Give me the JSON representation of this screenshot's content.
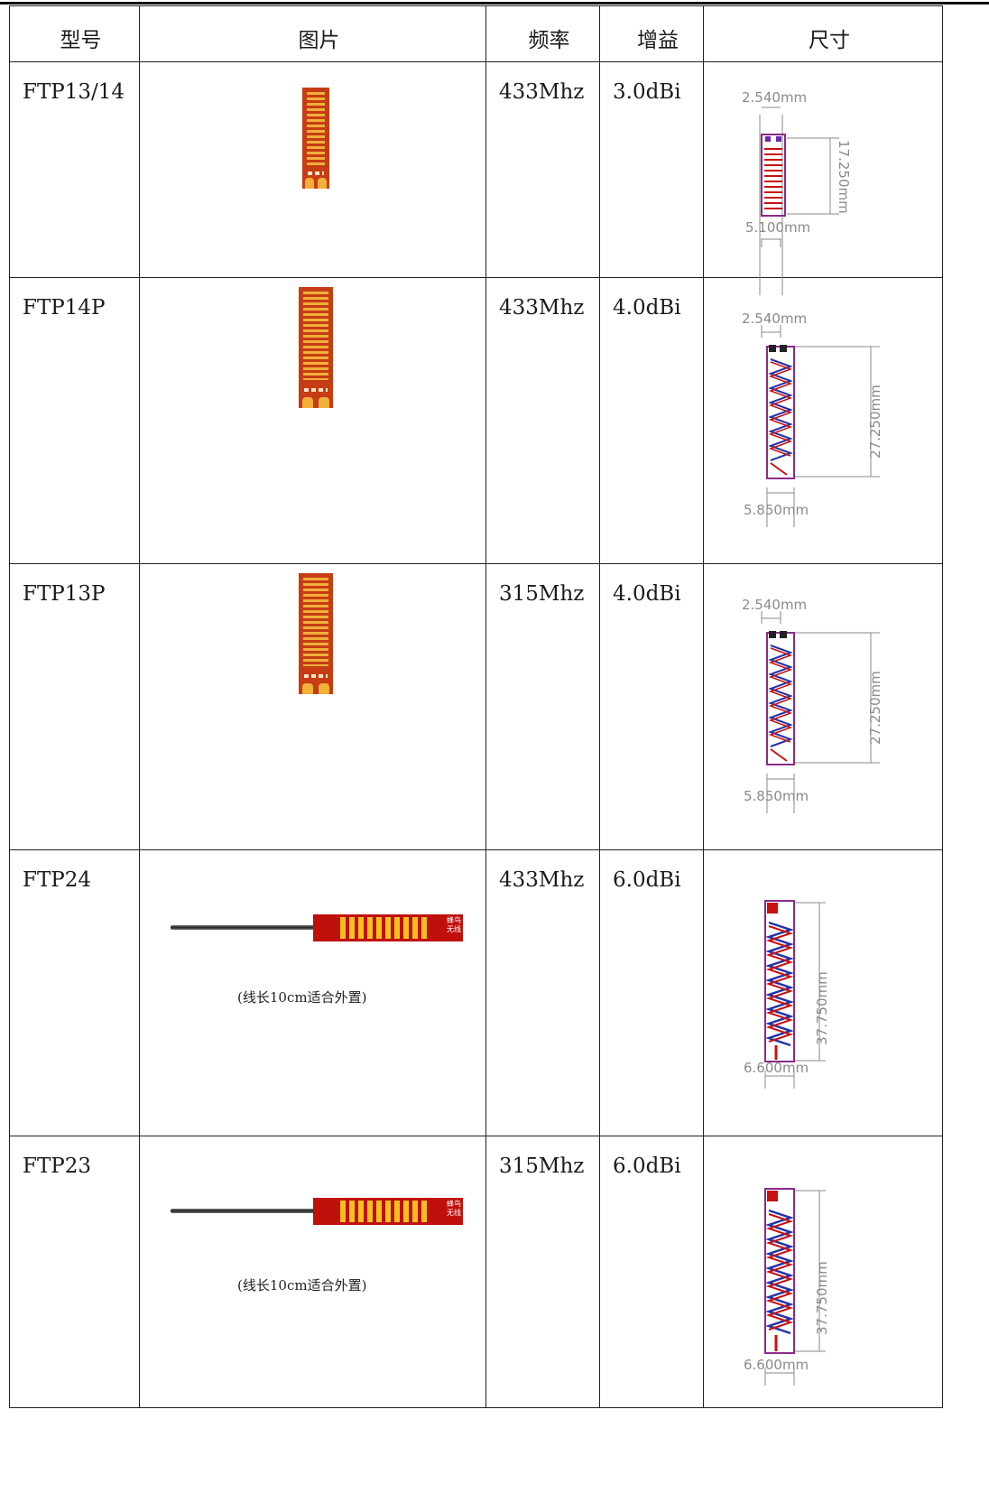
{
  "table": {
    "headers": {
      "model": "型号",
      "picture": "图片",
      "frequency": "频率",
      "gain": "增益",
      "size": "尺寸"
    },
    "rows": [
      {
        "model": "FTP13/14",
        "frequency": "433Mhz",
        "gain": "3.0dBi",
        "dim_width_top": "2.540mm",
        "dim_height": "17.250mm",
        "dim_width_bottom": "5.100mm",
        "note": ""
      },
      {
        "model": "FTP14P",
        "frequency": "433Mhz",
        "gain": "4.0dBi",
        "dim_width_top": "2.540mm",
        "dim_height": "27.250mm",
        "dim_width_bottom": "5.850mm",
        "note": ""
      },
      {
        "model": "FTP13P",
        "frequency": "315Mhz",
        "gain": "4.0dBi",
        "dim_width_top": "2.540mm",
        "dim_height": "27.250mm",
        "dim_width_bottom": "5.850mm",
        "note": ""
      },
      {
        "model": "FTP24",
        "frequency": "433Mhz",
        "gain": "6.0dBi",
        "dim_width_top": "",
        "dim_height": "37.750mm",
        "dim_width_bottom": "6.600mm",
        "note": "(线长10cm适合外置)"
      },
      {
        "model": "FTP23",
        "frequency": "315Mhz",
        "gain": "6.0dBi",
        "dim_width_top": "",
        "dim_height": "37.750mm",
        "dim_width_bottom": "6.600mm",
        "note": "(线长10cm适合外置)"
      }
    ]
  },
  "pcb_logo": {
    "line1": "蜂鸟",
    "line2": "无线"
  },
  "colors": {
    "pcb_orange": "#c63c14",
    "pcb_red": "#c0100c",
    "trace_gold": "#f0b03a",
    "coil_red": "#c81010",
    "coil_blue": "#2233aa",
    "outline_purple": "#8a2a8a",
    "dimension_gray": "#8a8a8a"
  }
}
